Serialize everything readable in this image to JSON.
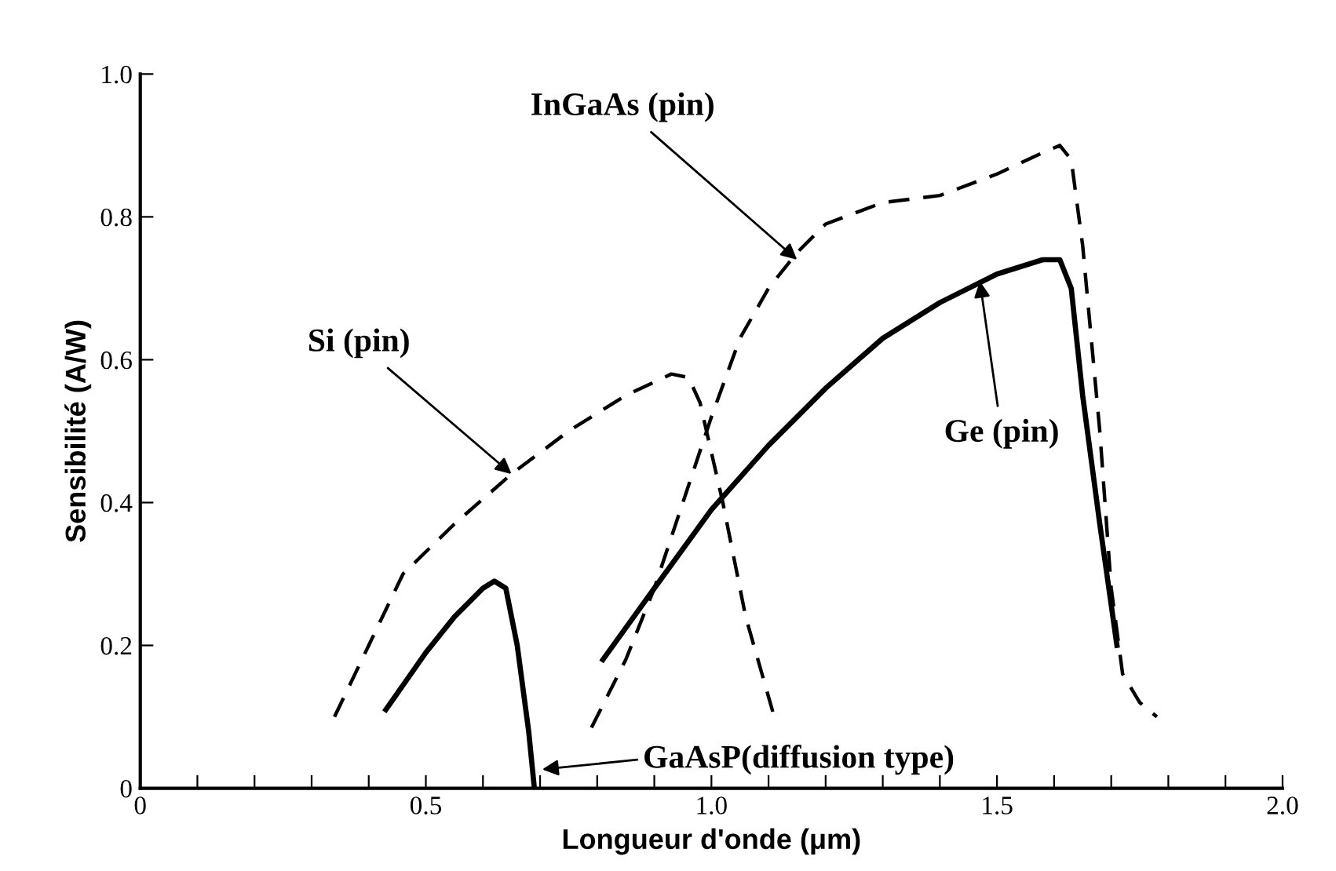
{
  "chart_data": {
    "type": "line",
    "xlabel": "Longueur d'onde (μm)",
    "ylabel": "Sensibilité (A/W)",
    "xlim": [
      0,
      2.0
    ],
    "ylim": [
      0,
      1.0
    ],
    "xticks": [
      0,
      {
        "value": 0.1,
        "label": null
      },
      {
        "value": 0.2,
        "label": null
      },
      {
        "value": 0.3,
        "label": null
      },
      {
        "value": 0.4,
        "label": null
      },
      0.5,
      {
        "value": 0.6,
        "label": null
      },
      {
        "value": 0.7,
        "label": null
      },
      {
        "value": 0.8,
        "label": null
      },
      {
        "value": 0.9,
        "label": null
      },
      {
        "value": 1.0,
        "label": "1.0"
      },
      {
        "value": 1.1,
        "label": null
      },
      {
        "value": 1.2,
        "label": null
      },
      {
        "value": 1.3,
        "label": null
      },
      {
        "value": 1.4,
        "label": null
      },
      1.5,
      {
        "value": 1.6,
        "label": null
      },
      {
        "value": 1.7,
        "label": null
      },
      {
        "value": 1.8,
        "label": null
      },
      {
        "value": 1.9,
        "label": null
      },
      {
        "value": 2.0,
        "label": "2.0"
      }
    ],
    "yticks": [
      0,
      0.2,
      0.4,
      0.6,
      0.8,
      {
        "value": 1.0,
        "label": "1.0"
      }
    ],
    "grid": false,
    "marker": "none",
    "series": [
      {
        "color": "#000000",
        "line_style": "solid",
        "x": [
          0.43,
          0.5,
          0.55,
          0.6,
          0.62,
          0.64,
          0.66,
          0.68,
          0.69
        ],
        "values": [
          0.11,
          0.19,
          0.24,
          0.28,
          0.29,
          0.28,
          0.2,
          0.08,
          0
        ]
      },
      {
        "color": "#000000",
        "line_style": "dashed",
        "x": [
          0.34,
          0.4,
          0.46,
          0.55,
          0.65,
          0.75,
          0.85,
          0.93,
          0.96,
          0.98,
          1.02,
          1.06,
          1.11
        ],
        "values": [
          0.1,
          0.2,
          0.3,
          0.37,
          0.44,
          0.5,
          0.55,
          0.58,
          0.575,
          0.54,
          0.4,
          0.24,
          0.1
        ]
      },
      {
        "color": "#000000",
        "line_style": "dashed",
        "x": [
          0.79,
          0.85,
          0.9,
          0.95,
          1.0,
          1.05,
          1.1,
          1.15,
          1.2,
          1.3,
          1.4,
          1.5,
          1.58,
          1.61,
          1.63,
          1.65,
          1.68,
          1.7,
          1.72,
          1.75,
          1.78
        ],
        "values": [
          0.085,
          0.18,
          0.28,
          0.4,
          0.52,
          0.63,
          0.7,
          0.75,
          0.79,
          0.82,
          0.83,
          0.86,
          0.89,
          0.9,
          0.88,
          0.76,
          0.5,
          0.28,
          0.16,
          0.12,
          0.1
        ]
      },
      {
        "color": "#000000",
        "line_style": "solid",
        "x": [
          0.81,
          0.9,
          1.0,
          1.1,
          1.2,
          1.3,
          1.4,
          1.5,
          1.58,
          1.61,
          1.63,
          1.65,
          1.68,
          1.71
        ],
        "values": [
          0.18,
          0.28,
          0.39,
          0.48,
          0.56,
          0.63,
          0.68,
          0.72,
          0.74,
          0.74,
          0.7,
          0.55,
          0.37,
          0.2
        ]
      }
    ],
    "annotations": [
      {
        "text": "Si (pin)",
        "x": 0.65,
        "y": 0.44
      },
      {
        "text": "InGaAs (pin)",
        "x": 1.15,
        "y": 0.74
      },
      {
        "text": "Ge (pin)",
        "x": 1.47,
        "y": 0.71
      },
      "GaAsP(diffusion type)"
    ]
  }
}
